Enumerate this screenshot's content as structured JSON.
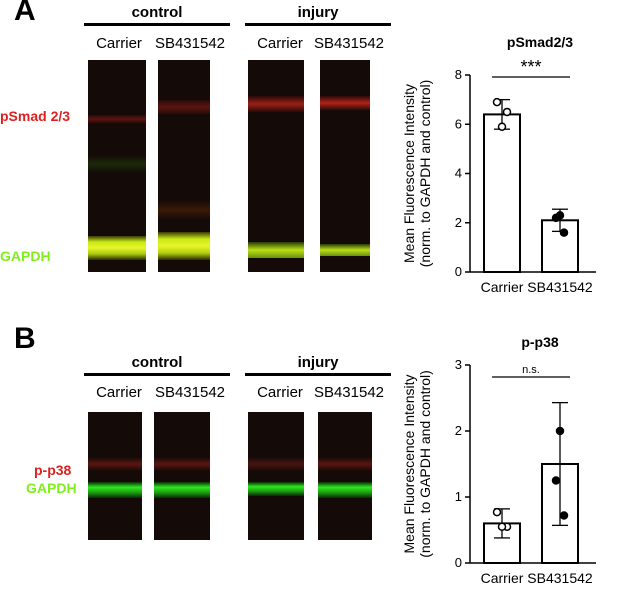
{
  "panels": [
    {
      "letter": "A",
      "groups": [
        "control",
        "injury"
      ],
      "lanes": [
        "Carrier",
        "SB431542",
        "Carrier",
        "SB431542"
      ],
      "band_labels": {
        "top": "pSmad 2/3",
        "bottom": "GAPDH"
      }
    },
    {
      "letter": "B",
      "groups": [
        "control",
        "injury"
      ],
      "lanes": [
        "Carrier",
        "SB431542",
        "Carrier",
        "SB431542"
      ],
      "band_labels": {
        "top": "p-p38",
        "bottom": "GAPDH"
      }
    }
  ],
  "colors": {
    "red_band": "#e02020",
    "green_band": "#7ff01a",
    "blot_bg": "#140a08"
  },
  "chart_data": [
    {
      "type": "bar",
      "title": "pSmad2/3",
      "categories": [
        "Carrier",
        "SB431542"
      ],
      "values": [
        6.4,
        2.1
      ],
      "errors": [
        0.6,
        0.45
      ],
      "points": [
        [
          6.9,
          6.5,
          5.9
        ],
        [
          2.3,
          2.2,
          1.6
        ]
      ],
      "ylabel": [
        "Mean Fluorescence Intensity",
        "(norm. to GAPDH and control)"
      ],
      "ylim": [
        0,
        8
      ],
      "yticks": [
        "0",
        "2",
        "4",
        "6",
        "8"
      ],
      "significance": "***"
    },
    {
      "type": "bar",
      "title": "p-p38",
      "categories": [
        "Carrier",
        "SB431542"
      ],
      "values": [
        0.6,
        1.5
      ],
      "errors": [
        0.22,
        0.93
      ],
      "points": [
        [
          0.77,
          0.55,
          0.55
        ],
        [
          2.0,
          1.25,
          0.72
        ]
      ],
      "ylabel": [
        "Mean Fluorescence Intensity",
        "(norm. to GAPDH and control)"
      ],
      "ylim": [
        0,
        3
      ],
      "yticks": [
        "0",
        "1",
        "2",
        "3"
      ],
      "significance": "n.s."
    }
  ]
}
